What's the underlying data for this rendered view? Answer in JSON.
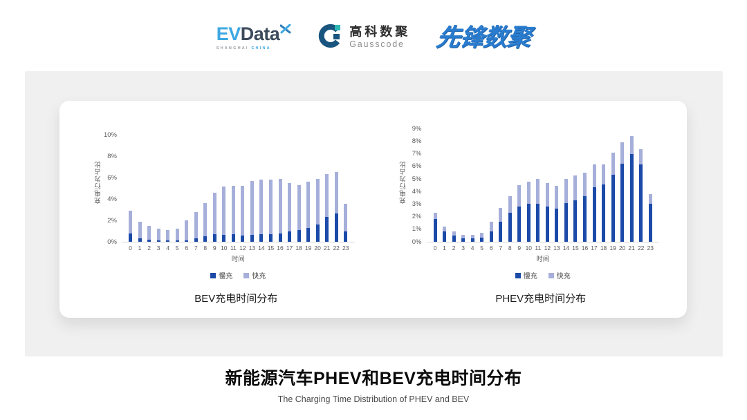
{
  "header": {
    "evdata": {
      "ev": "EV",
      "data": "Data",
      "sub_left": "SHANGHAI",
      "sub_right": "CHINA"
    },
    "gausscode": {
      "cn": "高科数聚",
      "en": "Gausscode"
    },
    "xianfeng": {
      "text": "先锋数聚"
    }
  },
  "footer": {
    "title": "新能源汽车PHEV和BEV充电时间分布",
    "subtitle": "The Charging Time Distribution of PHEV and BEV"
  },
  "colors": {
    "slow": "#1B4AA8",
    "fast": "#A6AFDA",
    "brand_blue": "#3EA8E2",
    "brand_navy": "#1A5580",
    "brand_teal": "#2CB8B2"
  },
  "chart_data": [
    {
      "type": "bar",
      "stacked": true,
      "title": "BEV充电时间分布",
      "xlabel": "时间",
      "ylabel": "充电行为占比",
      "categories": [
        "0",
        "1",
        "2",
        "3",
        "4",
        "5",
        "6",
        "7",
        "8",
        "9",
        "10",
        "11",
        "12",
        "13",
        "14",
        "15",
        "16",
        "17",
        "18",
        "19",
        "20",
        "21",
        "22",
        "23"
      ],
      "yticks": [
        "0%",
        "2%",
        "4%",
        "6%",
        "8%",
        "10%"
      ],
      "ytick_values": [
        0,
        2,
        4,
        6,
        8,
        10
      ],
      "ylim": [
        0,
        10
      ],
      "grid": false,
      "legend_position": "bottom",
      "series": [
        {
          "name": "慢充",
          "values": [
            0.75,
            0.35,
            0.2,
            0.1,
            0.1,
            0.1,
            0.15,
            0.35,
            0.5,
            0.7,
            0.65,
            0.7,
            0.6,
            0.65,
            0.7,
            0.7,
            0.8,
            0.95,
            1.1,
            1.3,
            1.6,
            2.35,
            2.65,
            0.95
          ]
        },
        {
          "name": "快充",
          "values": [
            2.15,
            1.55,
            1.3,
            1.1,
            1.0,
            1.1,
            1.85,
            2.45,
            3.1,
            3.9,
            4.5,
            4.55,
            4.65,
            5.0,
            5.1,
            5.1,
            5.05,
            4.55,
            4.2,
            4.3,
            4.3,
            3.95,
            3.85,
            2.6
          ]
        }
      ]
    },
    {
      "type": "bar",
      "stacked": true,
      "title": "PHEV充电时间分布",
      "xlabel": "时间",
      "ylabel": "充电行为占比",
      "categories": [
        "0",
        "1",
        "2",
        "3",
        "4",
        "5",
        "6",
        "7",
        "8",
        "9",
        "10",
        "11",
        "12",
        "13",
        "14",
        "15",
        "16",
        "17",
        "18",
        "19",
        "20",
        "21",
        "22",
        "23"
      ],
      "yticks": [
        "0%",
        "1%",
        "2%",
        "3%",
        "4%",
        "5%",
        "6%",
        "7%",
        "8%",
        "9%"
      ],
      "ytick_values": [
        0,
        1,
        2,
        3,
        4,
        5,
        6,
        7,
        8,
        9
      ],
      "ylim": [
        0,
        9
      ],
      "grid": false,
      "legend_position": "bottom",
      "series": [
        {
          "name": "慢充",
          "values": [
            1.8,
            0.8,
            0.5,
            0.3,
            0.3,
            0.35,
            0.8,
            1.6,
            2.3,
            2.8,
            3.05,
            3.0,
            2.8,
            2.65,
            3.1,
            3.3,
            3.6,
            4.35,
            4.55,
            5.35,
            6.2,
            7.0,
            6.15,
            3.05
          ]
        },
        {
          "name": "快充",
          "values": [
            0.5,
            0.4,
            0.3,
            0.25,
            0.25,
            0.35,
            0.8,
            1.1,
            1.35,
            1.7,
            1.75,
            2.0,
            1.85,
            1.8,
            1.9,
            1.95,
            1.9,
            1.8,
            1.6,
            1.75,
            1.7,
            1.4,
            1.2,
            0.75
          ]
        }
      ]
    }
  ]
}
